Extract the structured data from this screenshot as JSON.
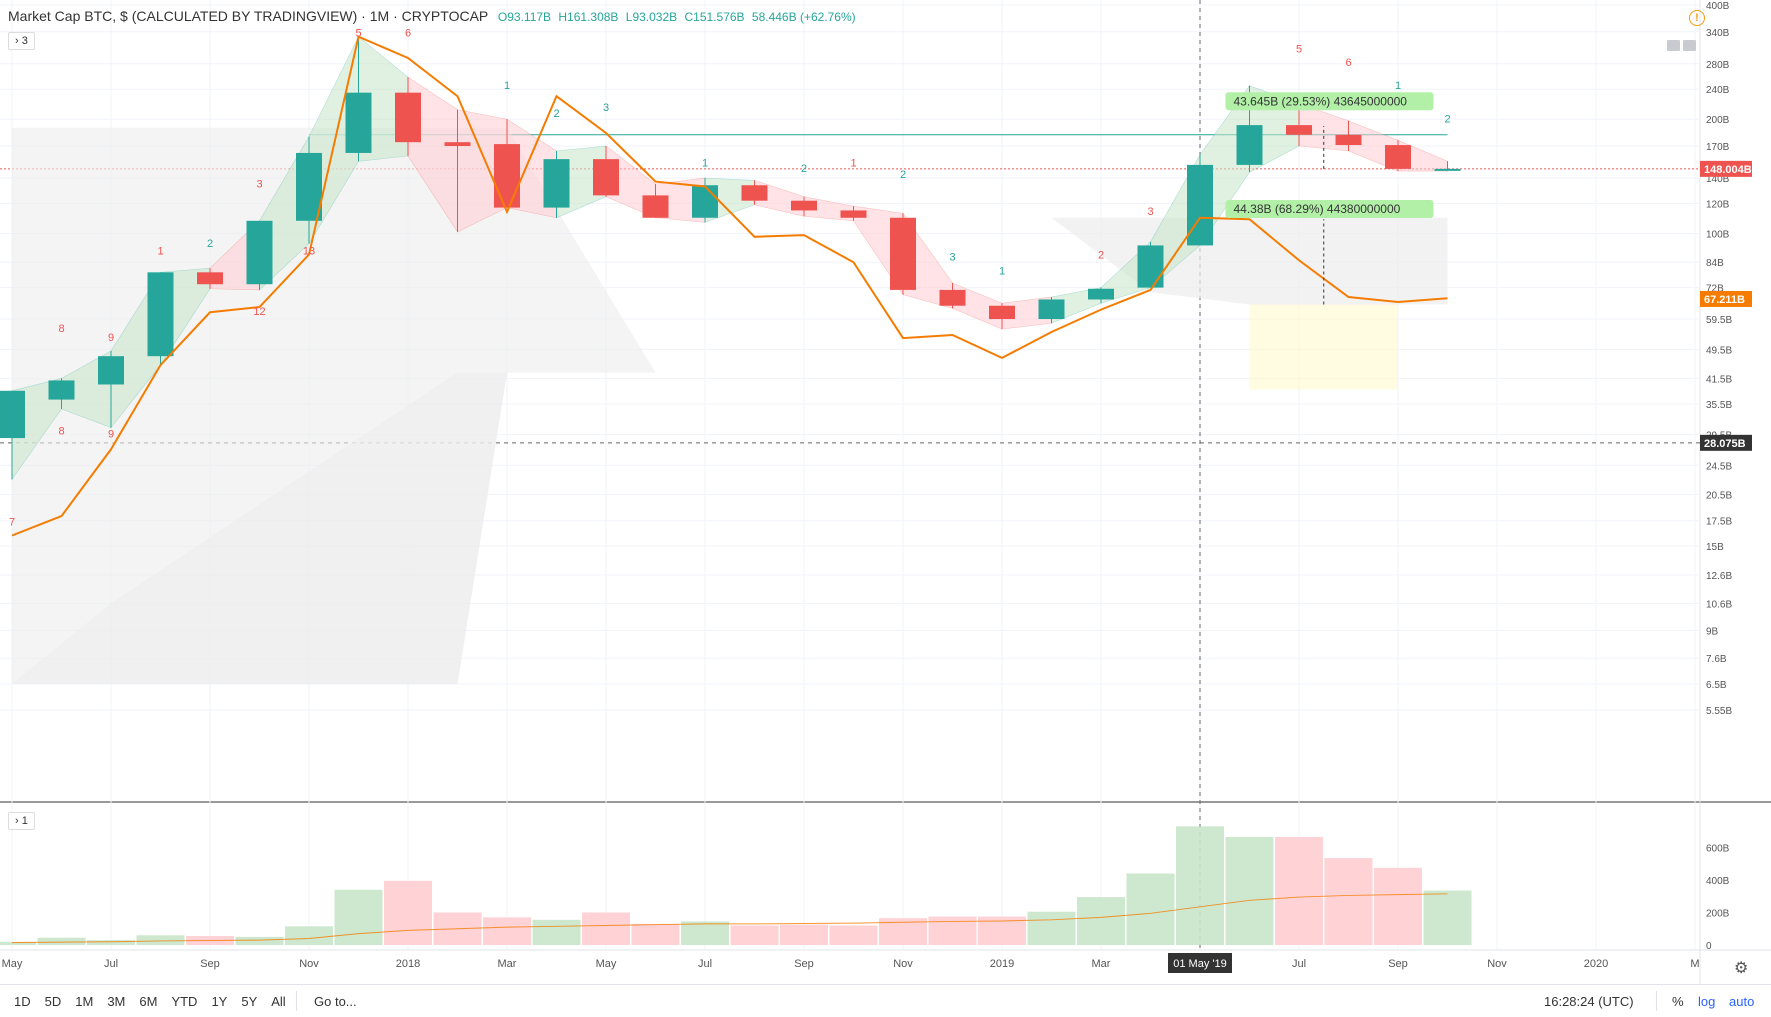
{
  "header": {
    "title": "Market Cap BTC, $ (CALCULATED BY TRADINGVIEW) · 1M · CRYPTOCAP",
    "open": "O93.117B",
    "high": "H161.308B",
    "low": "L93.032B",
    "close": "C151.576B",
    "change": "58.446B (+62.76%)"
  },
  "indicator_badges": [
    "3",
    "1"
  ],
  "colors": {
    "up": "#26a69a",
    "down": "#ef5350",
    "ma_line": "#f57c00",
    "up_fill": "#c8e6c9",
    "down_fill": "#ffcdd2",
    "neutral_fill": "#fff9c4",
    "label_bg": "#b2f0a8",
    "price_label": "#ef5350",
    "orange_label": "#f57c00",
    "cross_label": "#333333"
  },
  "chart_data": {
    "type": "candlestick",
    "x_axis_labels": [
      "May",
      "Jul",
      "Sep",
      "Nov",
      "2018",
      "Mar",
      "May",
      "Jul",
      "Sep",
      "Nov",
      "2019",
      "Mar",
      "01 May '19",
      "Jul",
      "Sep",
      "Nov",
      "2020",
      "M"
    ],
    "y_axis_labels": [
      "400B",
      "340B",
      "280B",
      "240B",
      "200B",
      "170B",
      "140B",
      "120B",
      "100B",
      "84B",
      "72B",
      "59.5B",
      "49.5B",
      "41.5B",
      "35.5B",
      "29.5B",
      "24.5B",
      "20.5B",
      "17.5B",
      "15B",
      "12.6B",
      "10.6B",
      "9B",
      "7.6B",
      "6.5B",
      "5.55B"
    ],
    "y_scale": "log",
    "candles": [
      {
        "o": 28.9,
        "h": 38.5,
        "l": 22.5,
        "c": 38.5
      },
      {
        "o": 36.5,
        "h": 41.5,
        "l": 34.5,
        "c": 41.0
      },
      {
        "o": 40.0,
        "h": 49.0,
        "l": 30.8,
        "c": 47.5
      },
      {
        "o": 47.5,
        "h": 79.0,
        "l": 45.0,
        "c": 79.0
      },
      {
        "o": 79.0,
        "h": 81.0,
        "l": 71.5,
        "c": 73.5
      },
      {
        "o": 73.5,
        "h": 108.0,
        "l": 71.0,
        "c": 108.0
      },
      {
        "o": 108.0,
        "h": 180.0,
        "l": 94.0,
        "c": 163.0
      },
      {
        "o": 163.0,
        "h": 330.0,
        "l": 155.0,
        "c": 235.0
      },
      {
        "o": 235.0,
        "h": 258.0,
        "l": 160.0,
        "c": 174.0
      },
      {
        "o": 174.0,
        "h": 212.0,
        "l": 101.0,
        "c": 170.0
      },
      {
        "o": 172.0,
        "h": 200.0,
        "l": 117.0,
        "c": 117.0
      },
      {
        "o": 117.0,
        "h": 165.0,
        "l": 110.0,
        "c": 157.0
      },
      {
        "o": 157.0,
        "h": 170.0,
        "l": 125.0,
        "c": 126.0
      },
      {
        "o": 126.0,
        "h": 135.0,
        "l": 110.0,
        "c": 110.0
      },
      {
        "o": 110.0,
        "h": 140.0,
        "l": 107.0,
        "c": 134.0
      },
      {
        "o": 134.0,
        "h": 138.0,
        "l": 119.0,
        "c": 122.0
      },
      {
        "o": 122.0,
        "h": 125.0,
        "l": 111.0,
        "c": 115.0
      },
      {
        "o": 115.0,
        "h": 118.0,
        "l": 108.0,
        "c": 110.0
      },
      {
        "o": 110.0,
        "h": 113.0,
        "l": 69.0,
        "c": 71.0
      },
      {
        "o": 71.0,
        "h": 74.0,
        "l": 63.5,
        "c": 64.5
      },
      {
        "o": 64.5,
        "h": 65.5,
        "l": 56.0,
        "c": 59.5
      },
      {
        "o": 59.5,
        "h": 68.0,
        "l": 58.0,
        "c": 67.0
      },
      {
        "o": 67.0,
        "h": 72.0,
        "l": 65.5,
        "c": 71.5
      },
      {
        "o": 72.0,
        "h": 95.0,
        "l": 72.0,
        "c": 93.0
      },
      {
        "o": 93.0,
        "h": 161.3,
        "l": 93.0,
        "c": 151.6
      },
      {
        "o": 151.6,
        "h": 245.0,
        "l": 145.0,
        "c": 193.0
      },
      {
        "o": 193.0,
        "h": 220.0,
        "l": 170.0,
        "c": 182.0
      },
      {
        "o": 182.0,
        "h": 198.0,
        "l": 165.0,
        "c": 171.0
      },
      {
        "o": 171.0,
        "h": 176.0,
        "l": 146.0,
        "c": 148.0
      },
      {
        "o": 148.0,
        "h": 155.0,
        "l": 146.0,
        "c": 148.0
      }
    ],
    "moving_average": [
      16.0,
      18.0,
      27.0,
      45.0,
      62.0,
      64.0,
      88.0,
      330.0,
      290.0,
      230.0,
      114.0,
      230.0,
      184.0,
      137.0,
      133.0,
      98.0,
      99.0,
      84.0,
      53.0,
      54.0,
      47.0,
      55.0,
      63.0,
      71.0,
      110.0,
      109.0,
      85.0,
      68.0,
      66.0,
      67.5
    ],
    "volume_axis_labels": [
      "600B",
      "400B",
      "200B",
      "0"
    ],
    "volume": [
      20,
      45,
      30,
      60,
      55,
      50,
      115,
      340,
      395,
      200,
      170,
      155,
      200,
      130,
      145,
      120,
      125,
      120,
      165,
      175,
      175,
      205,
      295,
      440,
      730,
      665,
      665,
      535,
      475,
      335
    ],
    "volume_ma": [
      15,
      18,
      20,
      25,
      28,
      30,
      40,
      70,
      90,
      100,
      110,
      115,
      120,
      125,
      130,
      130,
      132,
      135,
      140,
      145,
      148,
      155,
      170,
      195,
      235,
      275,
      295,
      305,
      310,
      315
    ],
    "price_labels": {
      "last": "148.004B",
      "orange": "67.211B",
      "cross": "28.075B"
    },
    "measure_labels": [
      "43.645B (29.53%) 43645000000",
      "44.38B (68.29%) 44380000000"
    ],
    "sequence_counts": [
      "7",
      "8",
      "8",
      "9",
      "9",
      "1",
      "2",
      "3",
      "12",
      "13",
      "5",
      "6",
      "1",
      "2",
      "3",
      "1",
      "2",
      "1",
      "2",
      "3",
      "1",
      "2",
      "3",
      "5",
      "6",
      "1",
      "2"
    ]
  },
  "bottom_bar": {
    "ranges": [
      "1D",
      "5D",
      "1M",
      "3M",
      "6M",
      "YTD",
      "1Y",
      "5Y",
      "All"
    ],
    "goto": "Go to...",
    "clock": "16:28:24 (UTC)",
    "percent": "%",
    "log": "log",
    "auto": "auto"
  }
}
